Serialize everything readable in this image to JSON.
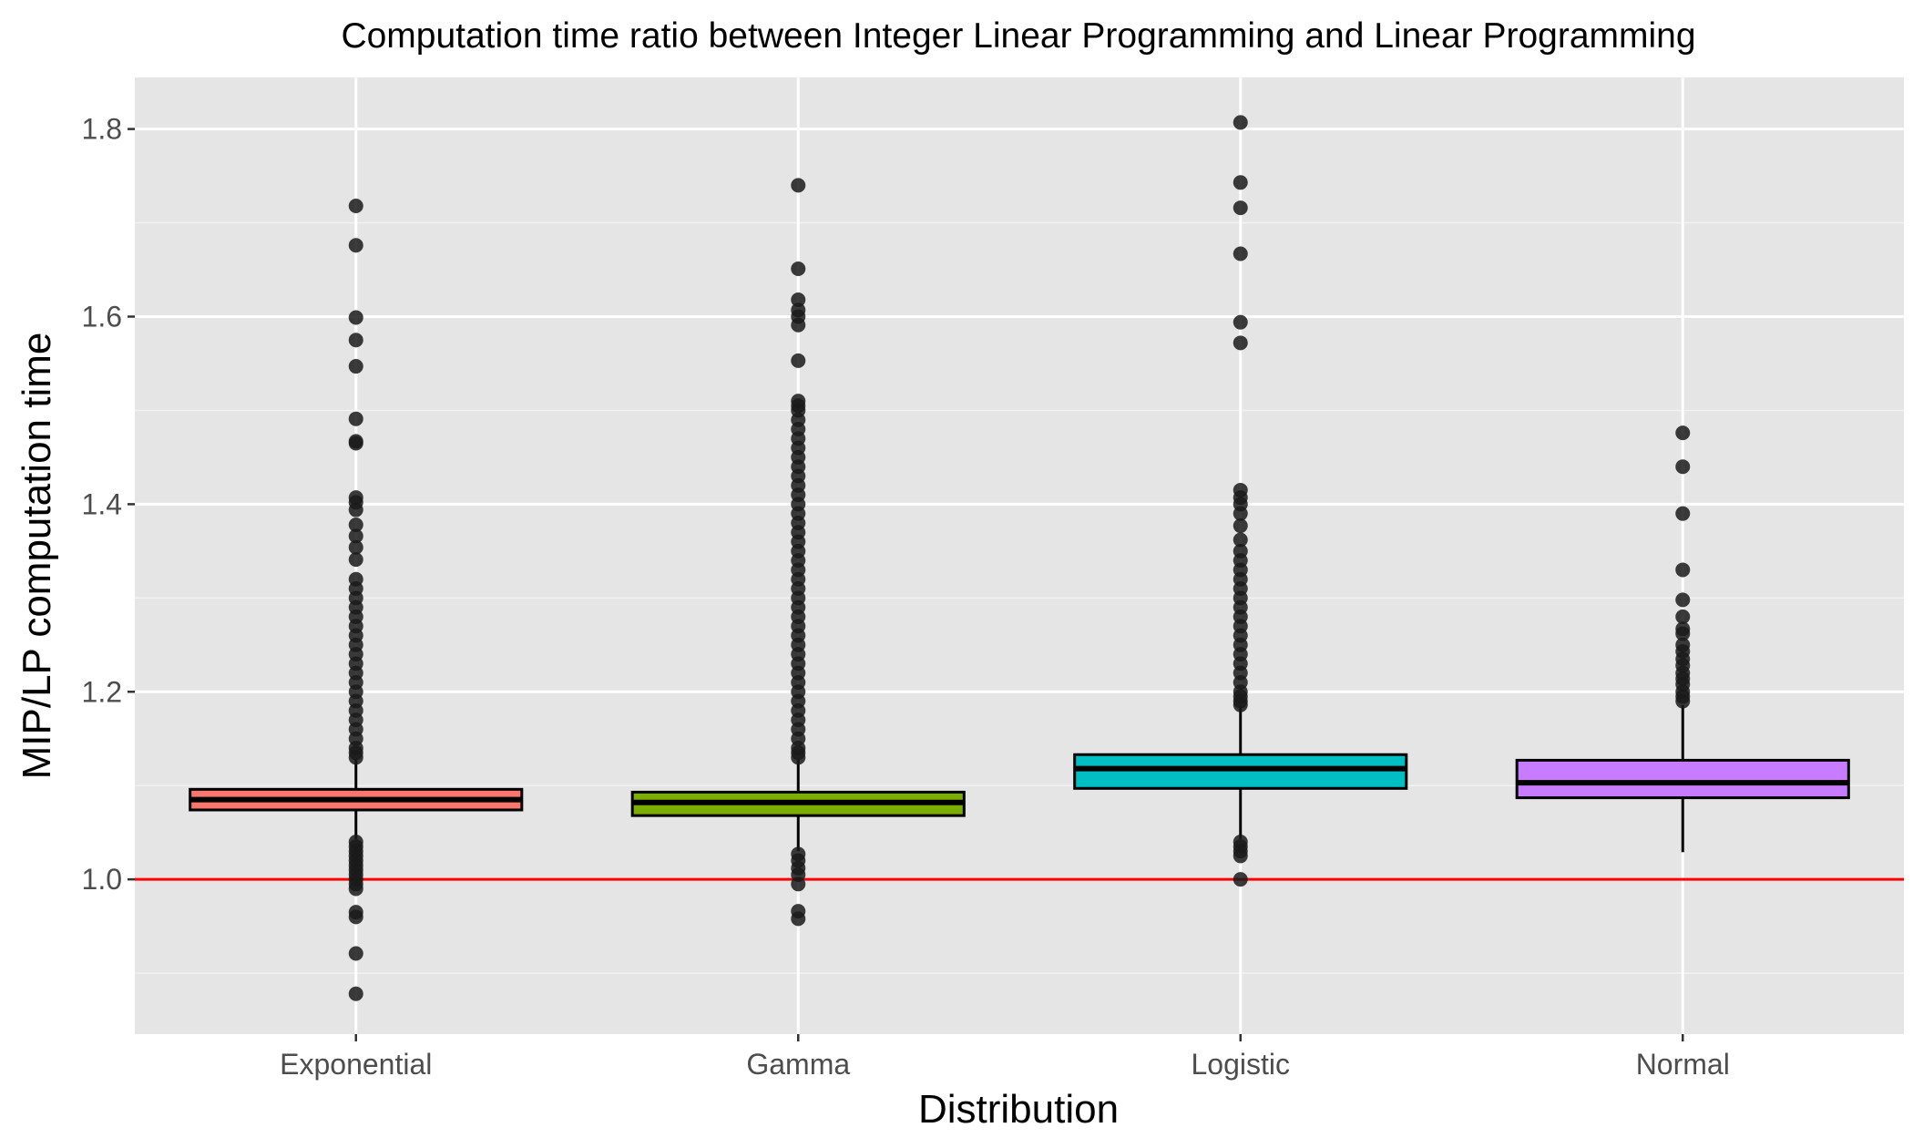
{
  "chart_data": {
    "type": "box",
    "title": "Computation time ratio between Integer Linear Programming and Linear Programming",
    "xlabel": "Distribution",
    "ylabel": "MIP/LP computation time",
    "categories": [
      "Exponential",
      "Gamma",
      "Logistic",
      "Normal"
    ],
    "ylim": [
      0.835,
      1.855
    ],
    "yticks": [
      1.0,
      1.2,
      1.4,
      1.6,
      1.8
    ],
    "ytick_labels": [
      "1.0",
      "1.2",
      "1.4",
      "1.6",
      "1.8"
    ],
    "grid": true,
    "legend": "none",
    "reference_line": {
      "y": 1.0,
      "color": "#ff0000"
    },
    "series": [
      {
        "category": "Exponential",
        "color": "#f8766d",
        "q1": 1.074,
        "median": 1.085,
        "q3": 1.096,
        "whisker_low": 1.043,
        "whisker_high": 1.128,
        "outliers": [
          1.718,
          1.676,
          1.599,
          1.575,
          1.547,
          1.491,
          1.467,
          1.465,
          1.407,
          1.402,
          1.394,
          1.378,
          1.366,
          1.354,
          1.341,
          1.32,
          1.31,
          1.3,
          1.29,
          1.28,
          1.27,
          1.26,
          1.25,
          1.24,
          1.23,
          1.22,
          1.21,
          1.2,
          1.19,
          1.18,
          1.17,
          1.16,
          1.15,
          1.14,
          1.135,
          1.13,
          1.04,
          1.035,
          1.03,
          1.025,
          1.02,
          1.015,
          1.01,
          1.005,
          1.0,
          0.995,
          0.99,
          0.965,
          0.96,
          0.921,
          0.878
        ]
      },
      {
        "category": "Gamma",
        "color": "#7cae00",
        "q1": 1.068,
        "median": 1.082,
        "q3": 1.093,
        "whisker_low": 1.03,
        "whisker_high": 1.128,
        "outliers": [
          1.74,
          1.651,
          1.618,
          1.607,
          1.6,
          1.591,
          1.553,
          1.51,
          1.505,
          1.5,
          1.49,
          1.48,
          1.47,
          1.46,
          1.45,
          1.44,
          1.43,
          1.42,
          1.41,
          1.4,
          1.39,
          1.38,
          1.37,
          1.36,
          1.35,
          1.34,
          1.33,
          1.32,
          1.31,
          1.3,
          1.29,
          1.28,
          1.27,
          1.26,
          1.25,
          1.24,
          1.23,
          1.22,
          1.21,
          1.2,
          1.19,
          1.18,
          1.17,
          1.16,
          1.15,
          1.14,
          1.135,
          1.13,
          1.027,
          1.02,
          1.012,
          1.005,
          0.995,
          0.966,
          0.958
        ]
      },
      {
        "category": "Logistic",
        "color": "#00bfc4",
        "q1": 1.097,
        "median": 1.118,
        "q3": 1.133,
        "whisker_low": 1.043,
        "whisker_high": 1.185,
        "outliers": [
          1.807,
          1.743,
          1.716,
          1.667,
          1.594,
          1.572,
          1.415,
          1.407,
          1.4,
          1.39,
          1.377,
          1.362,
          1.35,
          1.34,
          1.33,
          1.32,
          1.31,
          1.3,
          1.29,
          1.28,
          1.27,
          1.26,
          1.25,
          1.24,
          1.23,
          1.22,
          1.21,
          1.2,
          1.195,
          1.19,
          1.186,
          1.04,
          1.035,
          1.03,
          1.025,
          1.0
        ]
      },
      {
        "category": "Normal",
        "color": "#c77cff",
        "q1": 1.087,
        "median": 1.103,
        "q3": 1.127,
        "whisker_low": 1.029,
        "whisker_high": 1.186,
        "outliers": [
          1.476,
          1.44,
          1.39,
          1.33,
          1.298,
          1.28,
          1.267,
          1.262,
          1.25,
          1.243,
          1.235,
          1.228,
          1.22,
          1.214,
          1.208,
          1.2,
          1.195,
          1.19
        ]
      }
    ]
  }
}
